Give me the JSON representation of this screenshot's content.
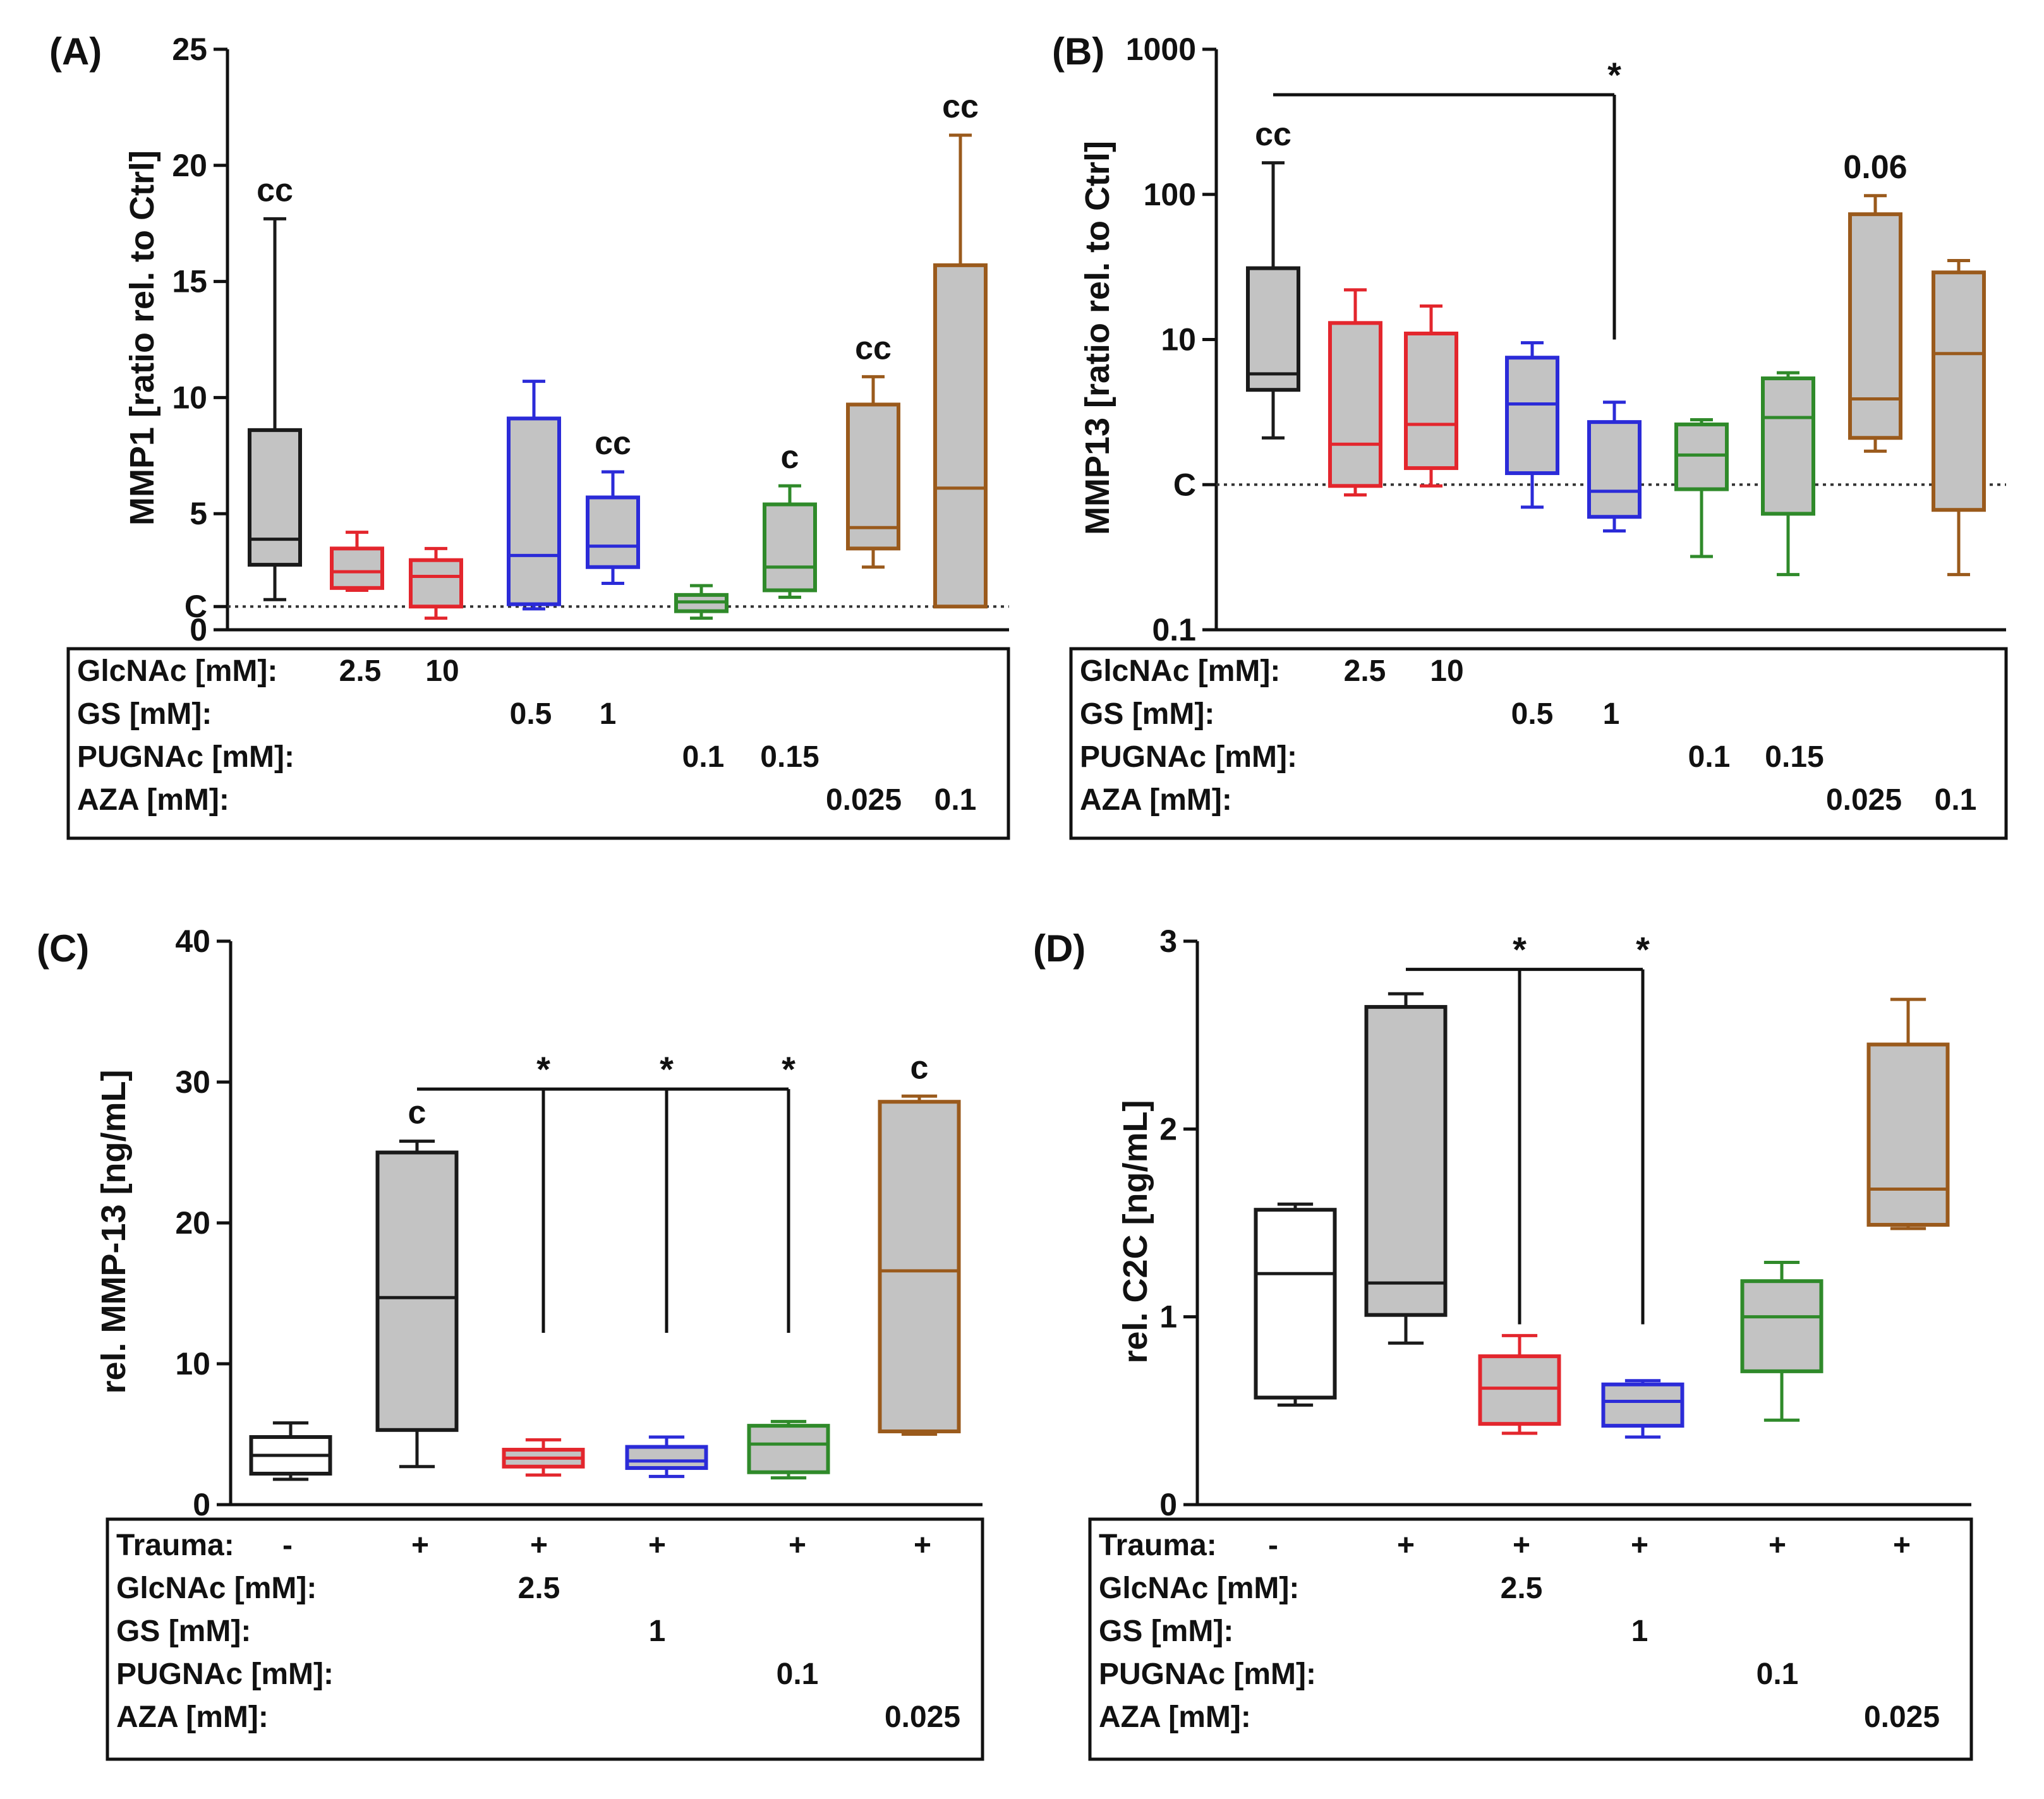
{
  "figure": {
    "colors": {
      "black": "#1a1a1a",
      "red": "#e3262d",
      "blue": "#2b2bd8",
      "green": "#2f8a2a",
      "brown": "#9a5a1c",
      "box_fill": "#c3c3c3",
      "white_fill": "#ffffff"
    }
  },
  "chart_data": [
    {
      "id": "A",
      "panel_label": "(A)",
      "type": "box",
      "ylabel": "MMP1 [ratio rel. to Ctrl]",
      "scale": "linear",
      "ylim": [
        0,
        25
      ],
      "yticks": [
        0,
        5,
        10,
        15,
        20,
        25
      ],
      "control_line": {
        "value": 1,
        "label": "C"
      },
      "groups": [
        {
          "color": "black",
          "fill": "gray",
          "min": 1.3,
          "q1": 2.8,
          "median": 3.9,
          "q3": 8.6,
          "max": 17.7,
          "annotation": "cc"
        },
        {
          "color": "red",
          "fill": "gray",
          "min": 1.7,
          "q1": 1.8,
          "median": 2.5,
          "q3": 3.5,
          "max": 4.2,
          "annotation": ""
        },
        {
          "color": "red",
          "fill": "gray",
          "min": 0.5,
          "q1": 1.0,
          "median": 2.3,
          "q3": 3.0,
          "max": 3.5,
          "annotation": ""
        },
        {
          "color": "blue",
          "fill": "gray",
          "min": 0.9,
          "q1": 1.1,
          "median": 3.2,
          "q3": 9.1,
          "max": 10.7,
          "annotation": ""
        },
        {
          "color": "blue",
          "fill": "gray",
          "min": 2.0,
          "q1": 2.7,
          "median": 3.6,
          "q3": 5.7,
          "max": 6.8,
          "annotation": "cc"
        },
        {
          "color": "green",
          "fill": "gray",
          "min": 0.5,
          "q1": 0.8,
          "median": 1.2,
          "q3": 1.5,
          "max": 1.9,
          "annotation": ""
        },
        {
          "color": "green",
          "fill": "gray",
          "min": 1.4,
          "q1": 1.7,
          "median": 2.7,
          "q3": 5.4,
          "max": 6.2,
          "annotation": "c"
        },
        {
          "color": "brown",
          "fill": "gray",
          "min": 2.7,
          "q1": 3.5,
          "median": 4.4,
          "q3": 9.7,
          "max": 10.9,
          "annotation": "cc"
        },
        {
          "color": "brown",
          "fill": "gray",
          "min": 1.0,
          "q1": 1.0,
          "median": 6.1,
          "q3": 15.7,
          "max": 21.3,
          "annotation": "cc"
        }
      ],
      "brackets": [],
      "table": [
        {
          "label": "GlcNAc [mM]:",
          "cells": [
            {
              "col": 1,
              "text": "2.5"
            },
            {
              "col": 2,
              "text": "10"
            }
          ]
        },
        {
          "label": "GS [mM]:",
          "cells": [
            {
              "col": 3,
              "text": "0.5"
            },
            {
              "col": 4,
              "text": "1"
            }
          ]
        },
        {
          "label": "PUGNAc [mM]:",
          "cells": [
            {
              "col": 5,
              "text": "0.1"
            },
            {
              "col": 6,
              "text": "0.15"
            }
          ]
        },
        {
          "label": "AZA [mM]:",
          "cells": [
            {
              "col": 7,
              "text": "0.025"
            },
            {
              "col": 8,
              "text": "0.1"
            }
          ]
        }
      ]
    },
    {
      "id": "B",
      "panel_label": "(B)",
      "type": "box",
      "ylabel": "MMP13 [ratio rel. to Ctrl]",
      "scale": "log",
      "ylim": [
        0.1,
        1000
      ],
      "yticks": [
        0.1,
        10,
        100,
        1000
      ],
      "yticklabels": [
        "0.1",
        "10",
        "100",
        "1000"
      ],
      "control_line": {
        "value": 1,
        "label": "C"
      },
      "groups": [
        {
          "color": "black",
          "fill": "gray",
          "min": 2.1,
          "q1": 4.5,
          "median": 5.8,
          "q3": 31,
          "max": 165,
          "annotation": "cc"
        },
        {
          "color": "red",
          "fill": "gray",
          "min": 0.85,
          "q1": 0.98,
          "median": 1.9,
          "q3": 13,
          "max": 22,
          "annotation": ""
        },
        {
          "color": "red",
          "fill": "gray",
          "min": 0.98,
          "q1": 1.3,
          "median": 2.6,
          "q3": 11,
          "max": 17,
          "annotation": ""
        },
        {
          "color": "blue",
          "fill": "gray",
          "min": 0.7,
          "q1": 1.2,
          "median": 3.6,
          "q3": 7.5,
          "max": 9.5,
          "annotation": ""
        },
        {
          "color": "blue",
          "fill": "gray",
          "min": 0.48,
          "q1": 0.6,
          "median": 0.9,
          "q3": 2.7,
          "max": 3.7,
          "annotation": ""
        },
        {
          "color": "green",
          "fill": "gray",
          "min": 0.32,
          "q1": 0.93,
          "median": 1.6,
          "q3": 2.6,
          "max": 2.8,
          "annotation": ""
        },
        {
          "color": "green",
          "fill": "gray",
          "min": 0.24,
          "q1": 0.63,
          "median": 2.9,
          "q3": 5.4,
          "max": 5.9,
          "annotation": ""
        },
        {
          "color": "brown",
          "fill": "gray",
          "min": 1.7,
          "q1": 2.1,
          "median": 3.9,
          "q3": 73,
          "max": 98,
          "annotation": "0.06"
        },
        {
          "color": "brown",
          "fill": "gray",
          "min": 0.24,
          "q1": 0.67,
          "median": 8.0,
          "q3": 29,
          "max": 35,
          "annotation": ""
        }
      ],
      "brackets": [
        {
          "from": 0,
          "to": [
            4
          ],
          "star": "*",
          "drop_to": 10
        }
      ],
      "table": [
        {
          "label": "GlcNAc [mM]:",
          "cells": [
            {
              "col": 1,
              "text": "2.5"
            },
            {
              "col": 2,
              "text": "10"
            }
          ]
        },
        {
          "label": "GS [mM]:",
          "cells": [
            {
              "col": 3,
              "text": "0.5"
            },
            {
              "col": 4,
              "text": "1"
            }
          ]
        },
        {
          "label": "PUGNAc [mM]:",
          "cells": [
            {
              "col": 5,
              "text": "0.1"
            },
            {
              "col": 6,
              "text": "0.15"
            }
          ]
        },
        {
          "label": "AZA [mM]:",
          "cells": [
            {
              "col": 7,
              "text": "0.025"
            },
            {
              "col": 8,
              "text": "0.1"
            }
          ]
        }
      ]
    },
    {
      "id": "C",
      "panel_label": "(C)",
      "type": "box",
      "ylabel": "rel. MMP-13 [ng/mL]",
      "scale": "linear",
      "ylim": [
        0,
        40
      ],
      "yticks": [
        0,
        10,
        20,
        30,
        40
      ],
      "groups": [
        {
          "color": "black",
          "fill": "white",
          "min": 1.8,
          "q1": 2.2,
          "median": 3.5,
          "q3": 4.8,
          "max": 5.8,
          "annotation": ""
        },
        {
          "color": "black",
          "fill": "gray",
          "min": 2.7,
          "q1": 5.3,
          "median": 14.7,
          "q3": 25.0,
          "max": 25.8,
          "annotation": "c"
        },
        {
          "color": "red",
          "fill": "gray",
          "min": 2.1,
          "q1": 2.7,
          "median": 3.3,
          "q3": 3.9,
          "max": 4.6,
          "annotation": ""
        },
        {
          "color": "blue",
          "fill": "gray",
          "min": 2.0,
          "q1": 2.6,
          "median": 3.1,
          "q3": 4.1,
          "max": 4.8,
          "annotation": ""
        },
        {
          "color": "green",
          "fill": "gray",
          "min": 1.9,
          "q1": 2.3,
          "median": 4.3,
          "q3": 5.6,
          "max": 5.9,
          "annotation": ""
        },
        {
          "color": "brown",
          "fill": "gray",
          "min": 5.0,
          "q1": 5.2,
          "median": 16.6,
          "q3": 28.6,
          "max": 29.0,
          "annotation": "c"
        }
      ],
      "brackets": [
        {
          "from": 1,
          "to": [
            2,
            3,
            4
          ],
          "star": "*",
          "drop_to": 12.2
        }
      ],
      "table": [
        {
          "label": "Trauma:",
          "cells": [
            {
              "col": 0,
              "text": "-"
            },
            {
              "col": 1,
              "text": "+"
            },
            {
              "col": 2,
              "text": "+"
            },
            {
              "col": 3,
              "text": "+"
            },
            {
              "col": 4,
              "text": "+"
            },
            {
              "col": 5,
              "text": "+"
            }
          ]
        },
        {
          "label": "GlcNAc [mM]:",
          "cells": [
            {
              "col": 2,
              "text": "2.5"
            }
          ]
        },
        {
          "label": "GS [mM]:",
          "cells": [
            {
              "col": 3,
              "text": "1"
            }
          ]
        },
        {
          "label": "PUGNAc [mM]:",
          "cells": [
            {
              "col": 4,
              "text": "0.1"
            }
          ]
        },
        {
          "label": "AZA [mM]:",
          "cells": [
            {
              "col": 5,
              "text": "0.025"
            }
          ]
        }
      ]
    },
    {
      "id": "D",
      "panel_label": "(D)",
      "type": "box",
      "ylabel": "rel. C2C [ng/mL]",
      "scale": "linear",
      "ylim": [
        0,
        3
      ],
      "yticks": [
        0,
        1,
        2,
        3
      ],
      "groups": [
        {
          "color": "black",
          "fill": "white",
          "min": 0.53,
          "q1": 0.57,
          "median": 1.23,
          "q3": 1.57,
          "max": 1.6,
          "annotation": ""
        },
        {
          "color": "black",
          "fill": "gray",
          "min": 0.86,
          "q1": 1.01,
          "median": 1.18,
          "q3": 2.65,
          "max": 2.72,
          "annotation": ""
        },
        {
          "color": "red",
          "fill": "gray",
          "min": 0.38,
          "q1": 0.43,
          "median": 0.62,
          "q3": 0.79,
          "max": 0.9,
          "annotation": ""
        },
        {
          "color": "blue",
          "fill": "gray",
          "min": 0.36,
          "q1": 0.42,
          "median": 0.55,
          "q3": 0.64,
          "max": 0.66,
          "annotation": ""
        },
        {
          "color": "green",
          "fill": "gray",
          "min": 0.45,
          "q1": 0.71,
          "median": 1.0,
          "q3": 1.19,
          "max": 1.29,
          "annotation": ""
        },
        {
          "color": "brown",
          "fill": "gray",
          "min": 1.47,
          "q1": 1.49,
          "median": 1.68,
          "q3": 2.45,
          "max": 2.69,
          "annotation": ""
        }
      ],
      "brackets": [
        {
          "from": 1,
          "to": [
            2,
            3
          ],
          "star": "*",
          "drop_to": 0.96
        }
      ],
      "table": [
        {
          "label": "Trauma:",
          "cells": [
            {
              "col": 0,
              "text": "-"
            },
            {
              "col": 1,
              "text": "+"
            },
            {
              "col": 2,
              "text": "+"
            },
            {
              "col": 3,
              "text": "+"
            },
            {
              "col": 4,
              "text": "+"
            },
            {
              "col": 5,
              "text": "+"
            }
          ]
        },
        {
          "label": "GlcNAc [mM]:",
          "cells": [
            {
              "col": 2,
              "text": "2.5"
            }
          ]
        },
        {
          "label": "GS [mM]:",
          "cells": [
            {
              "col": 3,
              "text": "1"
            }
          ]
        },
        {
          "label": "PUGNAc [mM]:",
          "cells": [
            {
              "col": 4,
              "text": "0.1"
            }
          ]
        },
        {
          "label": "AZA [mM]:",
          "cells": [
            {
              "col": 5,
              "text": "0.025"
            }
          ]
        }
      ]
    }
  ]
}
